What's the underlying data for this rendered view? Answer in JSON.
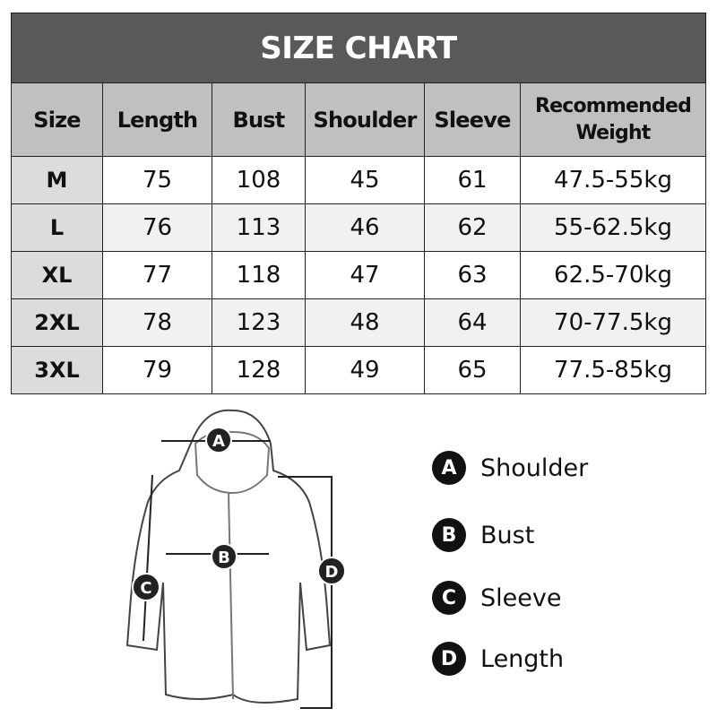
{
  "title": "SIZE CHART",
  "headers": [
    "Size",
    "Length",
    "Bust",
    "Shoulder",
    "Sleeve",
    "Recommended Weight"
  ],
  "rows": [
    [
      "M",
      "75",
      "108",
      "45",
      "61",
      "47.5-55kg"
    ],
    [
      "L",
      "76",
      "113",
      "46",
      "62",
      "55-62.5kg"
    ],
    [
      "XL",
      "77",
      "118",
      "47",
      "63",
      "62.5-70kg"
    ],
    [
      "2XL",
      "78",
      "123",
      "48",
      "64",
      "70-77.5kg"
    ],
    [
      "3XL",
      "79",
      "128",
      "49",
      "65",
      "77.5-85kg"
    ]
  ],
  "legend": [
    {
      "letter": "A",
      "label": "Shoulder"
    },
    {
      "letter": "B",
      "label": "Bust"
    },
    {
      "letter": "C",
      "label": "Sleeve"
    },
    {
      "letter": "D",
      "label": "Length"
    }
  ],
  "colors": {
    "title_bg": "#595959",
    "header_bg": "#c0c0c0",
    "size_col_bg": "#dcdcdc",
    "alt_row_bg": "#f1f1f1"
  }
}
